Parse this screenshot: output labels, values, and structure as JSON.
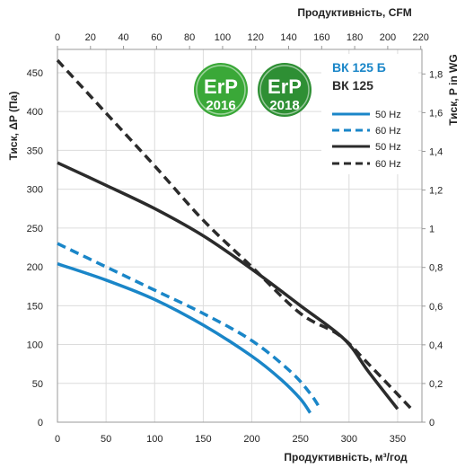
{
  "chart_data": {
    "type": "line",
    "title": "",
    "xlabel": "Продуктивність, м³/год",
    "xlabel_top": "Продуктивність, CFM",
    "ylabel": "Тиск, ΔP (Па)",
    "ylabel_right": "Тиск,  P in WG",
    "xlim": [
      0,
      375
    ],
    "ylim": [
      0,
      480
    ],
    "x_ticks": [
      "0",
      "50",
      "100",
      "150",
      "200",
      "250",
      "300",
      "350"
    ],
    "y_ticks": [
      "0",
      "50",
      "100",
      "150",
      "200",
      "250",
      "300",
      "350",
      "400",
      "450"
    ],
    "top_ticks": [
      "0",
      "20",
      "40",
      "60",
      "80",
      "100",
      "120",
      "140",
      "160",
      "180",
      "200",
      "220"
    ],
    "right_ticks": [
      "0",
      "0,2",
      "0,4",
      "0,6",
      "0,8",
      "1",
      "1,2",
      "1,4",
      "1,6",
      "1,8"
    ],
    "grid": true,
    "legend_position": "top-right",
    "legend_groups": [
      {
        "title": "ВК 125 Б",
        "color": "#1a86c8"
      },
      {
        "title": "ВК 125",
        "color": "#2b2b2b"
      }
    ],
    "series": [
      {
        "name": "50 Hz",
        "group": "ВК 125 Б",
        "color": "#1a86c8",
        "dash": "solid",
        "x": [
          0,
          50,
          100,
          150,
          200,
          230,
          250,
          260
        ],
        "y": [
          204,
          183,
          158,
          125,
          85,
          55,
          30,
          12
        ]
      },
      {
        "name": "60 Hz",
        "group": "ВК 125 Б",
        "color": "#1a86c8",
        "dash": "dashed",
        "x": [
          0,
          50,
          100,
          150,
          200,
          240,
          260,
          270
        ],
        "y": [
          230,
          200,
          170,
          140,
          105,
          65,
          37,
          18
        ]
      },
      {
        "name": "50 Hz",
        "group": "ВК 125",
        "color": "#2b2b2b",
        "dash": "solid",
        "x": [
          0,
          50,
          100,
          150,
          200,
          250,
          295,
          320,
          350
        ],
        "y": [
          334,
          305,
          275,
          240,
          197,
          150,
          107,
          65,
          17
        ]
      },
      {
        "name": "60 Hz",
        "group": "ВК 125",
        "color": "#2b2b2b",
        "dash": "dashed",
        "x": [
          0,
          50,
          100,
          150,
          200,
          250,
          290,
          320,
          365
        ],
        "y": [
          466,
          398,
          330,
          260,
          200,
          140,
          112,
          75,
          16
        ]
      }
    ]
  },
  "badges": [
    {
      "logo": "ErP",
      "year": "2016",
      "color": "#3aa838"
    },
    {
      "logo": "ErP",
      "year": "2018",
      "color": "#2e8f34"
    }
  ]
}
